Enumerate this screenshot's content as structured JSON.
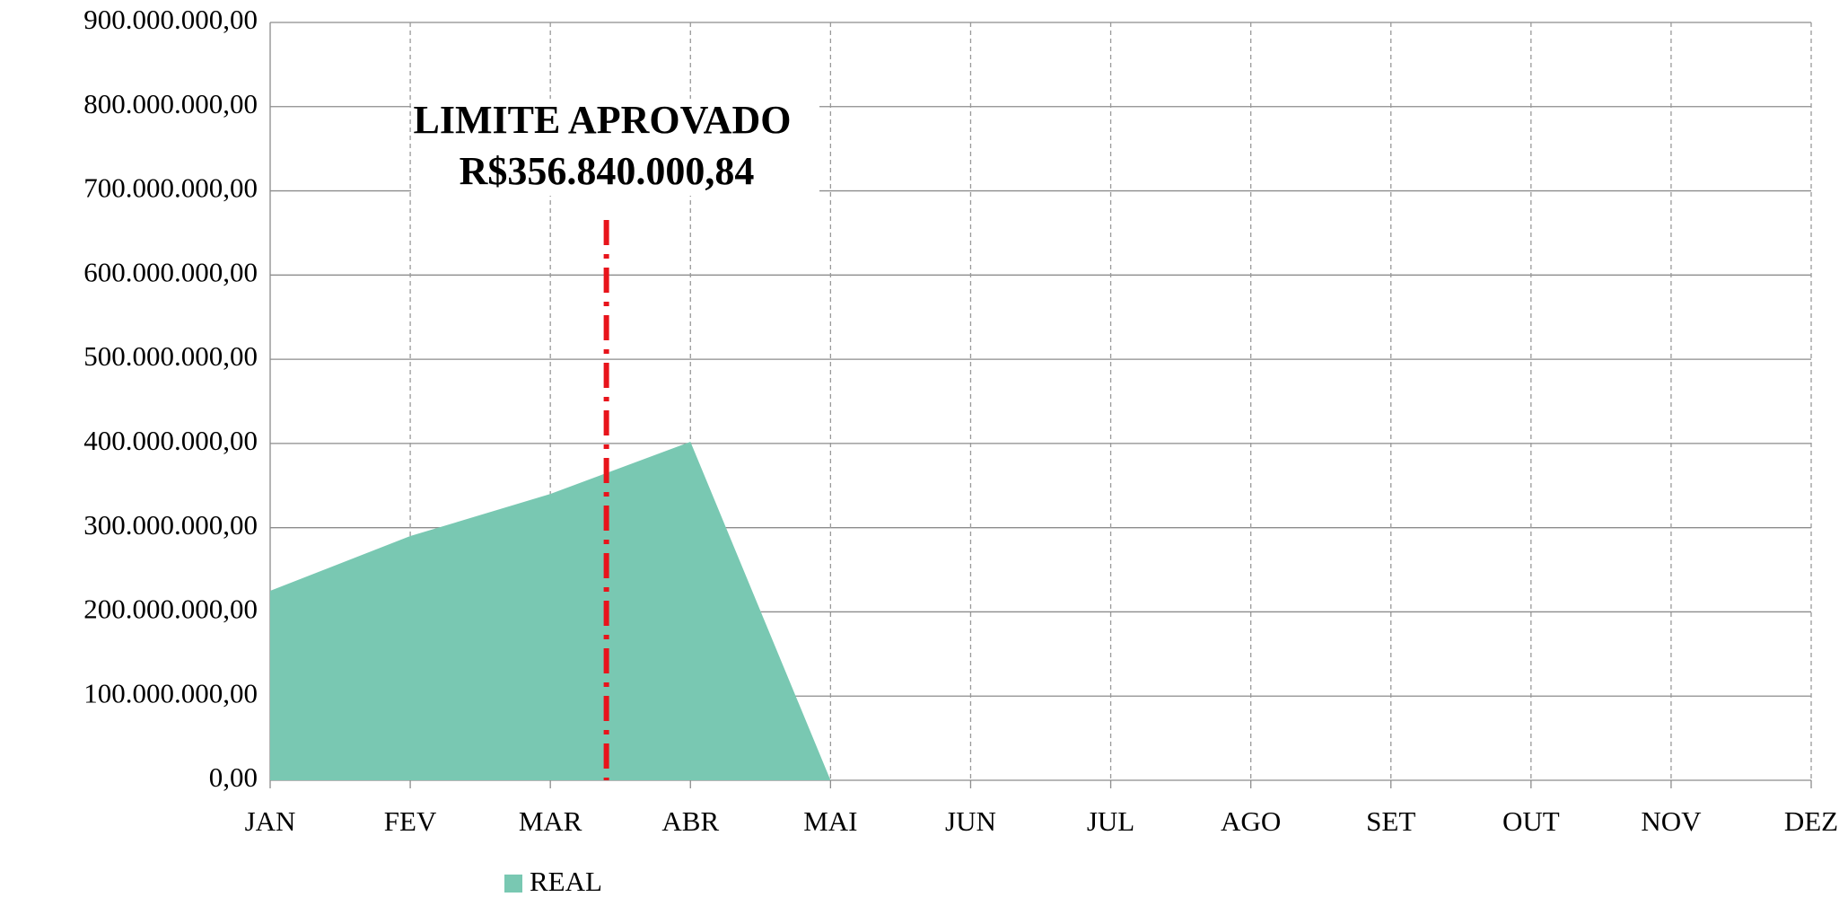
{
  "chart_data": {
    "type": "area",
    "annotation": [
      "LIMITE APROVADO",
      "R$356.840.000,84"
    ],
    "categories": [
      "JAN",
      "FEV",
      "MAR",
      "ABR",
      "MAI",
      "JUN",
      "JUL",
      "AGO",
      "SET",
      "OUT",
      "NOV",
      "DEZ"
    ],
    "series": [
      {
        "name": "REAL",
        "color": "#79c8b2",
        "values": [
          225000000,
          290000000,
          340000000,
          402000000,
          0,
          null,
          null,
          null,
          null,
          null,
          null,
          null
        ]
      }
    ],
    "ylim": [
      0,
      900000000
    ],
    "yticks": [
      {
        "value": 0,
        "label": "0,00"
      },
      {
        "value": 100000000,
        "label": "100.000.000,00"
      },
      {
        "value": 200000000,
        "label": "200.000.000,00"
      },
      {
        "value": 300000000,
        "label": "300.000.000,00"
      },
      {
        "value": 400000000,
        "label": "400.000.000,00"
      },
      {
        "value": 500000000,
        "label": "500.000.000,00"
      },
      {
        "value": 600000000,
        "label": "600.000.000,00"
      },
      {
        "value": 700000000,
        "label": "700.000.000,00"
      },
      {
        "value": 800000000,
        "label": "800.000.000,00"
      },
      {
        "value": 900000000,
        "label": "900.000.000,00"
      }
    ],
    "grid": true,
    "legend": "bottom"
  }
}
